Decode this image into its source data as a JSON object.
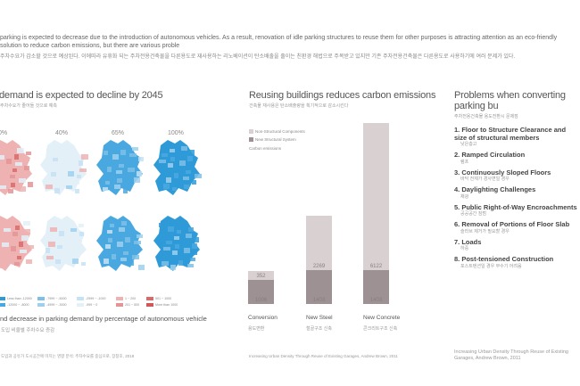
{
  "intro": {
    "text": "parking is expected to decrease due to the introduction of autonomous vehicles. As a result, renovation of idle parking structures to reuse them for other purposes is attracting attention as an eco-friendly solution to reduce carbon emissions, but there are various proble",
    "korean": "주차수요가 감소할 것으로 예상된다. 이에따라 유휴화 되는 주차전용건축물을 다른용도로 재사용하는 리노베이션이 탄소배출을 줄이는 친환경 해법으로 주목받고 있지만 기존 주차전용건축물은 다른용도로 사용하기에 여러 문제가 있다."
  },
  "left": {
    "title": "demand is expected to decline by 2045",
    "subtitle": "주차수요가 줄어들 것으로 예측",
    "percents": [
      "0%",
      "40%",
      "65%",
      "100%"
    ],
    "legend": [
      {
        "label": "Less than -12000",
        "color": "#2f9ad8"
      },
      {
        "label": "-12000 ~ -8000",
        "color": "#4aa8e0"
      },
      {
        "label": "-7999 ~ -5000",
        "color": "#7cc0e8"
      },
      {
        "label": "-4999 ~ -3000",
        "color": "#9dd0ee"
      },
      {
        "label": "-2999 ~ -1000",
        "color": "#c5e2f4"
      },
      {
        "label": "-999 ~ 0",
        "color": "#e3f0f8"
      },
      {
        "label": "1 ~ 200",
        "color": "#eeb2b2"
      },
      {
        "label": "201 ~ 500",
        "color": "#e49494"
      },
      {
        "label": "501 ~ 1000",
        "color": "#d96a6a"
      },
      {
        "label": "More than 1000",
        "color": "#d05858"
      }
    ],
    "caption": "nd decrease in parking demand by percentage of autonomous vehicle",
    "caption_k": "도입 비율별 주차수요 증감",
    "source": "도입과 공유가 도시공간에 미치는 영향 분석: 주차수요를 중심으로, 장창호, 2018"
  },
  "middle": {
    "title": "Reusing buildings reduces carbon emissions",
    "subtitle": "건축물 재사용은 탄소배출량을 획기적으로 감소시킨다",
    "legend": [
      {
        "label": "Non-Structural Components",
        "color": "#d8d0d1"
      },
      {
        "label": "New Structural System",
        "color": "#9e9193"
      }
    ],
    "legend_note": "Carbon emissions",
    "source": "Increasing Urban Density Through Reuse of Existing Garages, Andrew Brown, 2011"
  },
  "chart_data": {
    "type": "bar",
    "stacked": true,
    "categories": [
      "Conversion",
      "New Steel",
      "New Concrete"
    ],
    "categories_k": [
      "용도변환",
      "철골구조 신축",
      "콘크리트구조 신축"
    ],
    "series": [
      {
        "name": "New Structural System",
        "values": [
          1006,
          1403,
          1403
        ],
        "color": "#9e9193"
      },
      {
        "name": "Non-Structural Components",
        "values": [
          352,
          2269,
          6122
        ],
        "color": "#d8d0d1"
      }
    ],
    "ylabel": "Carbon emissions"
  },
  "right": {
    "title": "Problems when converting parking bu",
    "subtitle": "주차전용건축물 용도전환시 문제점",
    "items": [
      {
        "label": "1. Floor to Structure Clearance and size of",
        "label2": "structural members",
        "k": "낮은층고"
      },
      {
        "label": "2. Ramped Circulation",
        "k": "램프"
      },
      {
        "label": "3. Continuously Sloped Floors",
        "k": "바닥 전체가 경사면일 경우"
      },
      {
        "label": "4. Daylighting Challenges",
        "k": "채광"
      },
      {
        "label": "5. Public Right-of-Way Encroachments",
        "k": "공공공간 침범"
      },
      {
        "label": "6. Removal of Portions of Floor Slab",
        "k": "슬라브 제거가 필요할 경우"
      },
      {
        "label": "7. Loads",
        "k": "하중"
      },
      {
        "label": "8. Post-tensioned Construction",
        "k": "포스트텐션일 경우 부수기 어려움"
      }
    ],
    "source": "Increasing Urban Density Through Reuse of Existing Garages, Andrew Brown, 2011"
  }
}
